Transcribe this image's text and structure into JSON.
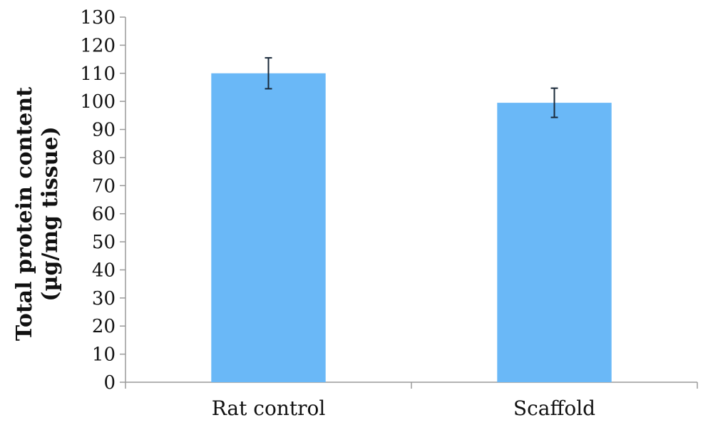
{
  "chart_data": {
    "type": "bar",
    "categories": [
      "Rat control",
      "Scaffold"
    ],
    "values": [
      110,
      99.5
    ],
    "error": [
      5.5,
      5.2
    ],
    "ylabel_lines": [
      "Total protein content",
      "(µg/mg tissue)"
    ],
    "xlabel": "",
    "ylim": [
      0,
      130
    ],
    "yticks": [
      "0",
      "10",
      "20",
      "30",
      "40",
      "50",
      "60",
      "70",
      "80",
      "90",
      "100",
      "110",
      "120",
      "130"
    ],
    "grid": false,
    "bar_color": "#6ab8f7"
  }
}
